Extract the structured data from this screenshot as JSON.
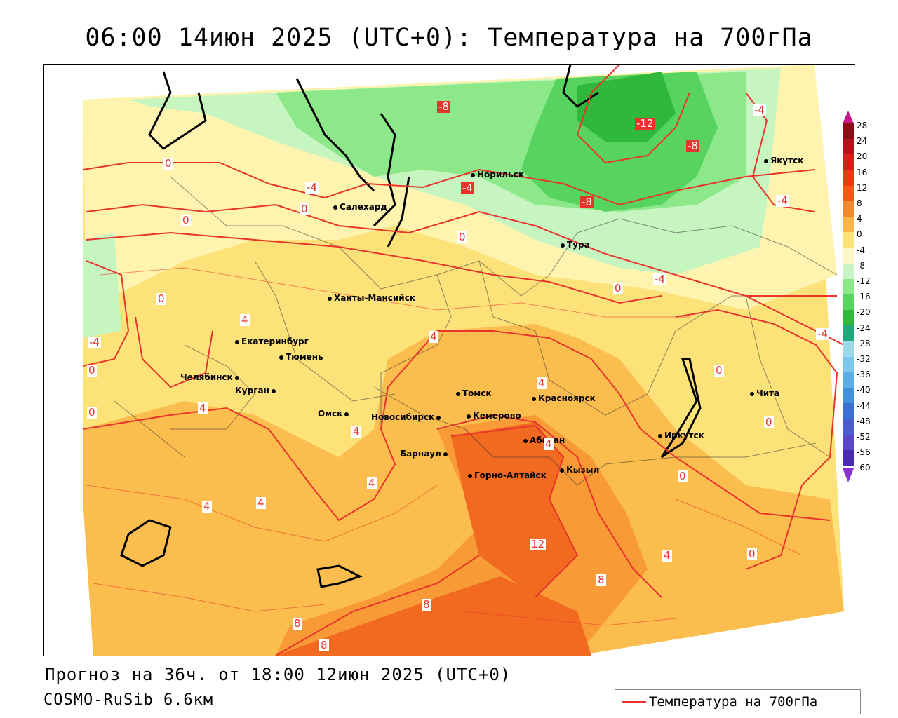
{
  "title": "06:00 14июн 2025 (UTC+0): Температура на 700гПа",
  "forecast_line": "Прогноз на 36ч. от 18:00 12июн 2025 (UTC+0)",
  "model_line": "COSMO-RuSib 6.6км",
  "legend": {
    "label": "Температура на 700гПа",
    "line_color": "#e8342c"
  },
  "colors": {
    "t_lt_minus12": "#2fb83c",
    "t_minus12_minus8": "#57d45f",
    "t_minus8_minus4": "#8de88a",
    "t_minus4_0": "#c7f5c0",
    "t_0_4": "#fff3b0",
    "t_4_8": "#ffe07a",
    "t_8_12": "#fbbd4d",
    "t_12_16": "#f89a35",
    "t_gt_16": "#f16a20",
    "isotherm": "#e8342c"
  },
  "colorbar": {
    "ticks": [
      "28",
      "24",
      "20",
      "16",
      "12",
      "8",
      "4",
      "0",
      "-4",
      "-8",
      "-12",
      "-16",
      "-20",
      "-24",
      "-28",
      "-32",
      "-36",
      "-40",
      "-44",
      "-48",
      "-52",
      "-56",
      "-60"
    ],
    "segment_colors": [
      "#8b0a14",
      "#b3121a",
      "#d42018",
      "#ea3a10",
      "#f25a18",
      "#f4892c",
      "#f9b547",
      "#fde27a",
      "#fff6c5",
      "#c8f4c3",
      "#8de88a",
      "#57d45f",
      "#2fb83c",
      "#1fa87a",
      "#9bd8ea",
      "#7ec7ec",
      "#5daee6",
      "#4291df",
      "#3c6fd2",
      "#4d5bd1",
      "#5a46c8",
      "#4b2ab6"
    ]
  },
  "cities": [
    {
      "name": "Салехард"
    },
    {
      "name": "Норильск"
    },
    {
      "name": "Якутск"
    },
    {
      "name": "Тура"
    },
    {
      "name": "Ханты-Мансийск"
    },
    {
      "name": "Екатеринбург"
    },
    {
      "name": "Тюмень"
    },
    {
      "name": "Челябинск"
    },
    {
      "name": "Курган"
    },
    {
      "name": "Омск"
    },
    {
      "name": "Новосибирск"
    },
    {
      "name": "Томск"
    },
    {
      "name": "Кемерово"
    },
    {
      "name": "Красноярск"
    },
    {
      "name": "Абакан"
    },
    {
      "name": "Барнаул"
    },
    {
      "name": "Горно-Алтайск"
    },
    {
      "name": "Кызыл"
    },
    {
      "name": "Иркутск"
    },
    {
      "name": "Чита"
    }
  ],
  "isotherm_labels": [
    "-8",
    "-12",
    "-8",
    "-4",
    "-4",
    "-4",
    "-4",
    "-8",
    "-4",
    "0",
    "-4",
    "0",
    "0",
    "0",
    "0",
    "4",
    "0",
    "-4",
    "0",
    "4",
    "4",
    "4",
    "4",
    "0",
    "4",
    "4",
    "4",
    "0",
    "4",
    "0",
    "0",
    "12",
    "4",
    "8",
    "8",
    "8",
    "8",
    "0"
  ]
}
